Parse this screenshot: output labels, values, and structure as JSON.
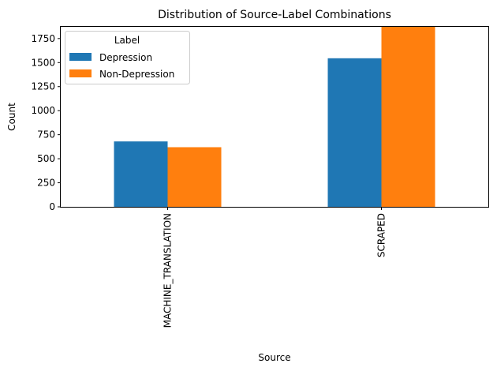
{
  "chart_data": {
    "type": "bar",
    "title": "Distribution of Source-Label Combinations",
    "xlabel": "Source",
    "ylabel": "Count",
    "categories": [
      "MACHINE_TRANSLATION",
      "SCRAPED"
    ],
    "series": [
      {
        "name": "Depression",
        "values": [
          680,
          1545
        ],
        "color": "#1f77b4"
      },
      {
        "name": "Non-Depression",
        "values": [
          620,
          1880
        ],
        "color": "#ff7f0e"
      }
    ],
    "ylim": [
      0,
      1880
    ],
    "yticks": [
      0,
      250,
      500,
      750,
      1000,
      1250,
      1500,
      1750
    ],
    "legend": {
      "title": "Label",
      "placement": "top-left"
    },
    "grid": false
  }
}
